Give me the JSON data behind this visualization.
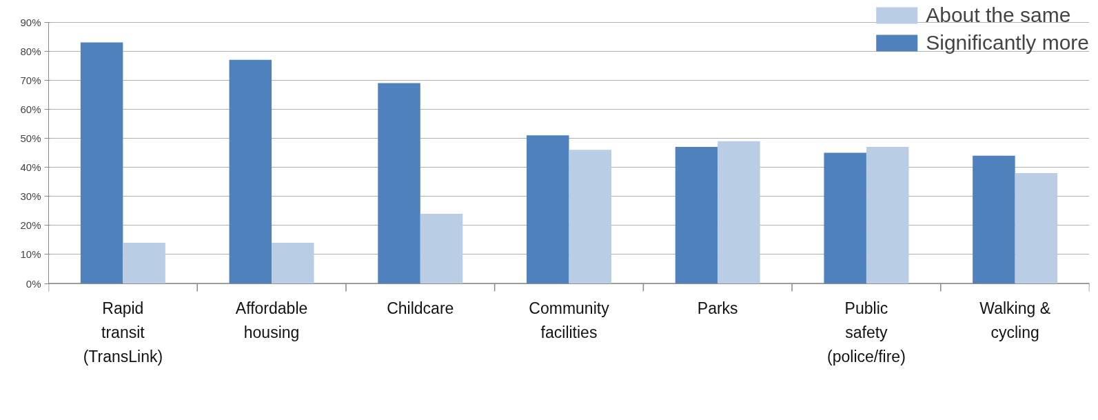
{
  "chart_data": {
    "type": "bar",
    "categories": [
      "Rapid\ntransit\n(TransLink)",
      "Affordable\nhousing",
      "Childcare",
      "Community\nfacilities",
      "Parks",
      "Public\nsafety\n(police/fire)",
      "Walking &\ncycling"
    ],
    "series": [
      {
        "name": "Significantly more",
        "color": "#4f81bd",
        "values": [
          83,
          77,
          69,
          51,
          47,
          45,
          44
        ]
      },
      {
        "name": "About the same",
        "color": "#b9cde5",
        "values": [
          14,
          14,
          24,
          46,
          49,
          47,
          38
        ]
      }
    ],
    "ylim": [
      0,
      90
    ],
    "yticks": [
      {
        "value": 0,
        "label": "0%"
      },
      {
        "value": 10,
        "label": "10%"
      },
      {
        "value": 20,
        "label": "20%"
      },
      {
        "value": 30,
        "label": "30%"
      },
      {
        "value": 40,
        "label": "40%"
      },
      {
        "value": 50,
        "label": "50%"
      },
      {
        "value": 60,
        "label": "60%"
      },
      {
        "value": 70,
        "label": "70%"
      },
      {
        "value": 80,
        "label": "80%"
      },
      {
        "value": 90,
        "label": "90%"
      }
    ],
    "grid": "y",
    "legend": "top right"
  }
}
